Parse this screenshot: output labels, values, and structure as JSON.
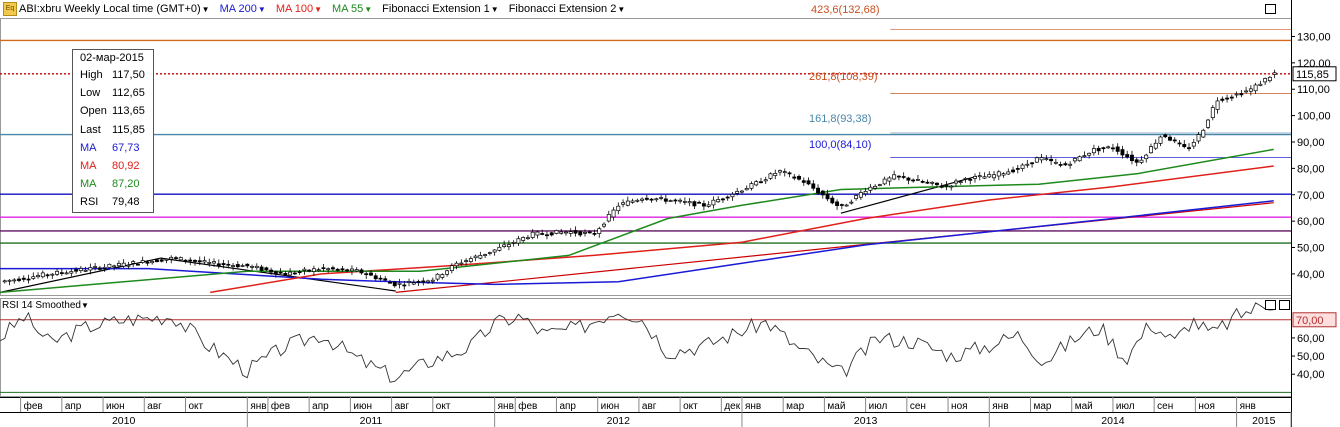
{
  "header": {
    "symbol": "ABI:xbru Weekly Local time (GMT+0)",
    "ma200_label": "MA 200",
    "ma100_label": "MA 100",
    "ma55_label": "MA 55",
    "fib1_label": "Fibonacci Extension 1",
    "fib2_label": "Fibonacci Extension 2",
    "rsi_label": "RSI 14 Smoothed"
  },
  "legend": {
    "date": "02-мар-2015",
    "rows": [
      {
        "key": "High",
        "value": "117,50",
        "color": "#000000"
      },
      {
        "key": "Low",
        "value": "112,65",
        "color": "#000000"
      },
      {
        "key": "Open",
        "value": "113,65",
        "color": "#000000"
      },
      {
        "key": "Last",
        "value": "115,85",
        "color": "#000000"
      },
      {
        "key": "MA",
        "value": "67,73",
        "color": "#1a1ad6"
      },
      {
        "key": "MA",
        "value": "80,92",
        "color": "#e0201a"
      },
      {
        "key": "MA",
        "value": "87,20",
        "color": "#1e8a1e"
      },
      {
        "key": "RSI",
        "value": "79,48",
        "color": "#000000"
      }
    ]
  },
  "fib_labels": [
    {
      "text": "423,6(132,68)",
      "color": "#c8501e"
    },
    {
      "text": "261,8(108,39)",
      "color": "#c8501e"
    },
    {
      "text": "161,8(93,38)",
      "color": "#4a86a8"
    },
    {
      "text": "100,0(84,10)",
      "color": "#1a1ad6"
    }
  ],
  "chart_data": {
    "type": "candlestick",
    "price_axis": {
      "ticks": [
        "130,00",
        "120,00",
        "110,00",
        "100,00",
        "90,00",
        "80,00",
        "70,00",
        "60,00",
        "50,00",
        "40,00"
      ],
      "min": 32,
      "max": 137
    },
    "last_price_label": "115,85",
    "rsi_axis": {
      "ticks": [
        "60,00",
        "50,00",
        "40,00"
      ],
      "min": 28,
      "max": 82
    },
    "rsi_level_label": "70,00",
    "months": [
      "фев",
      "апр",
      "июн",
      "авг",
      "окт",
      "янв",
      "фев",
      "апр",
      "июн",
      "авг",
      "окт",
      "янв",
      "фев",
      "апр",
      "июн",
      "авг",
      "окт",
      "дек",
      "янв",
      "мар",
      "май",
      "июл",
      "сен",
      "ноя",
      "янв",
      "мар",
      "май",
      "июл",
      "сен",
      "ноя",
      "янв"
    ],
    "years": [
      "2010",
      "2011",
      "2012",
      "2013",
      "2014",
      "2015"
    ],
    "horizontal_lines": [
      {
        "value": 128.5,
        "color": "#d2691e"
      },
      {
        "value": 115.85,
        "color": "#cc0000",
        "style": "dotted"
      },
      {
        "value": 92.8,
        "color": "#4a86a8"
      },
      {
        "value": 70.2,
        "color": "#1010c0"
      },
      {
        "value": 61.5,
        "color": "#e020e0"
      },
      {
        "value": 56.3,
        "color": "#601060"
      },
      {
        "value": 51.7,
        "color": "#207020"
      }
    ],
    "price_anchors": [
      [
        2010.0,
        37
      ],
      [
        2010.2,
        40
      ],
      [
        2010.45,
        43
      ],
      [
        2010.7,
        46
      ],
      [
        2010.85,
        44
      ],
      [
        2011.0,
        43
      ],
      [
        2011.15,
        40
      ],
      [
        2011.3,
        42
      ],
      [
        2011.45,
        41
      ],
      [
        2011.6,
        36
      ],
      [
        2011.75,
        38
      ],
      [
        2011.85,
        44
      ],
      [
        2012.0,
        49
      ],
      [
        2012.15,
        55
      ],
      [
        2012.3,
        56
      ],
      [
        2012.4,
        55
      ],
      [
        2012.5,
        66
      ],
      [
        2012.6,
        69
      ],
      [
        2012.7,
        68
      ],
      [
        2012.85,
        66
      ],
      [
        2012.95,
        70
      ],
      [
        2013.05,
        74
      ],
      [
        2013.15,
        79
      ],
      [
        2013.25,
        75
      ],
      [
        2013.4,
        65
      ],
      [
        2013.5,
        72
      ],
      [
        2013.62,
        77
      ],
      [
        2013.72,
        75
      ],
      [
        2013.82,
        73
      ],
      [
        2013.9,
        76
      ],
      [
        2014.0,
        77
      ],
      [
        2014.12,
        80
      ],
      [
        2014.2,
        84
      ],
      [
        2014.3,
        81
      ],
      [
        2014.42,
        87
      ],
      [
        2014.5,
        88
      ],
      [
        2014.6,
        82
      ],
      [
        2014.7,
        93
      ],
      [
        2014.8,
        87
      ],
      [
        2014.86,
        94
      ],
      [
        2014.92,
        106
      ],
      [
        2015.0,
        108
      ],
      [
        2015.06,
        110
      ],
      [
        2015.15,
        116
      ]
    ],
    "rsi_anchors": [
      [
        2010.0,
        60
      ],
      [
        2010.1,
        72
      ],
      [
        2010.2,
        57
      ],
      [
        2010.35,
        66
      ],
      [
        2010.5,
        70
      ],
      [
        2010.7,
        72
      ],
      [
        2010.85,
        55
      ],
      [
        2011.0,
        42
      ],
      [
        2011.15,
        55
      ],
      [
        2011.3,
        62
      ],
      [
        2011.45,
        48
      ],
      [
        2011.6,
        38
      ],
      [
        2011.75,
        48
      ],
      [
        2011.9,
        55
      ],
      [
        2012.0,
        68
      ],
      [
        2012.1,
        72
      ],
      [
        2012.2,
        62
      ],
      [
        2012.35,
        66
      ],
      [
        2012.5,
        76
      ],
      [
        2012.6,
        70
      ],
      [
        2012.7,
        52
      ],
      [
        2012.85,
        56
      ],
      [
        2013.0,
        64
      ],
      [
        2013.1,
        69
      ],
      [
        2013.22,
        55
      ],
      [
        2013.4,
        40
      ],
      [
        2013.55,
        60
      ],
      [
        2013.7,
        58
      ],
      [
        2013.85,
        50
      ],
      [
        2014.0,
        56
      ],
      [
        2014.12,
        62
      ],
      [
        2014.22,
        47
      ],
      [
        2014.35,
        60
      ],
      [
        2014.45,
        66
      ],
      [
        2014.55,
        48
      ],
      [
        2014.65,
        68
      ],
      [
        2014.75,
        58
      ],
      [
        2014.82,
        70
      ],
      [
        2014.9,
        62
      ],
      [
        2015.0,
        72
      ],
      [
        2015.1,
        78
      ],
      [
        2015.15,
        79.5
      ]
    ],
    "ma200_anchors": [
      [
        2010.0,
        42
      ],
      [
        2010.6,
        42
      ],
      [
        2011.3,
        38
      ],
      [
        2011.6,
        37
      ],
      [
        2012.0,
        36
      ],
      [
        2012.5,
        37
      ],
      [
        2013.0,
        44
      ],
      [
        2013.5,
        51
      ],
      [
        2014.0,
        56
      ],
      [
        2014.5,
        61
      ],
      [
        2015.15,
        67.7
      ]
    ],
    "ma100_anchors": [
      [
        2010.85,
        33
      ],
      [
        2011.3,
        40
      ],
      [
        2011.8,
        43
      ],
      [
        2012.4,
        47
      ],
      [
        2013.0,
        52
      ],
      [
        2013.5,
        61
      ],
      [
        2014.0,
        68
      ],
      [
        2014.5,
        73
      ],
      [
        2015.15,
        80.9
      ]
    ],
    "ma55_anchors": [
      [
        2010.0,
        33
      ],
      [
        2010.5,
        37
      ],
      [
        2011.0,
        41
      ],
      [
        2011.7,
        41
      ],
      [
        2012.3,
        47
      ],
      [
        2012.7,
        61
      ],
      [
        2013.0,
        66
      ],
      [
        2013.4,
        72
      ],
      [
        2013.8,
        73
      ],
      [
        2014.2,
        74
      ],
      [
        2014.6,
        78
      ],
      [
        2015.15,
        87.2
      ]
    ],
    "trend_lines": [
      {
        "points": [
          [
            2010.0,
            33
          ],
          [
            2010.65,
            46
          ],
          [
            2011.6,
            33.5
          ]
        ],
        "color": "#000000"
      },
      {
        "points": [
          [
            2013.4,
            63
          ],
          [
            2013.95,
            77
          ]
        ],
        "color": "#000000"
      },
      {
        "points": [
          [
            2011.6,
            33
          ],
          [
            2015.15,
            67
          ]
        ],
        "color": "#cc0000"
      }
    ]
  }
}
